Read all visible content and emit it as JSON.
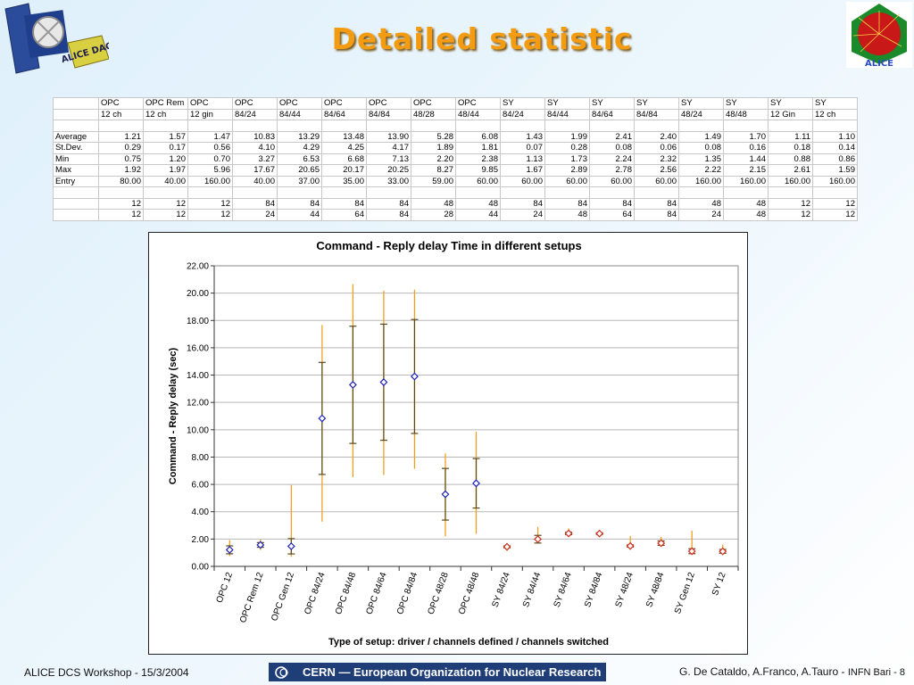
{
  "header": {
    "title": "Detailed statistic",
    "logo_left_text": "ALICE DAQ",
    "logo_right_text": "ALICE"
  },
  "table": {
    "header_row1": [
      "OPC",
      "OPC Rem",
      "OPC",
      "OPC",
      "OPC",
      "OPC",
      "OPC",
      "OPC",
      "OPC",
      "SY",
      "SY",
      "SY",
      "SY",
      "SY",
      "SY",
      "SY",
      "SY"
    ],
    "header_row2": [
      "12 ch",
      "12 ch",
      "12 gin",
      "84/24",
      "84/44",
      "84/64",
      "84/84",
      "48/28",
      "48/44",
      "84/24",
      "84/44",
      "84/64",
      "84/84",
      "48/24",
      "48/48",
      "12 Gin",
      "12 ch"
    ],
    "stat_rows": [
      {
        "label": "Average",
        "values": [
          "1.21",
          "1.57",
          "1.47",
          "10.83",
          "13.29",
          "13.48",
          "13.90",
          "5.28",
          "6.08",
          "1.43",
          "1.99",
          "2.41",
          "2.40",
          "1.49",
          "1.70",
          "1.11",
          "1.10"
        ]
      },
      {
        "label": "St.Dev.",
        "values": [
          "0.29",
          "0.17",
          "0.56",
          "4.10",
          "4.29",
          "4.25",
          "4.17",
          "1.89",
          "1.81",
          "0.07",
          "0.28",
          "0.08",
          "0.06",
          "0.08",
          "0.16",
          "0.18",
          "0.14"
        ]
      },
      {
        "label": "Min",
        "values": [
          "0.75",
          "1.20",
          "0.70",
          "3.27",
          "6.53",
          "6.68",
          "7.13",
          "2.20",
          "2.38",
          "1.13",
          "1.73",
          "2.24",
          "2.32",
          "1.35",
          "1.44",
          "0.88",
          "0.86"
        ]
      },
      {
        "label": "Max",
        "values": [
          "1.92",
          "1.97",
          "5.96",
          "17.67",
          "20.65",
          "20.17",
          "20.25",
          "8.27",
          "9.85",
          "1.67",
          "2.89",
          "2.78",
          "2.56",
          "2.22",
          "2.15",
          "2.61",
          "1.59"
        ]
      },
      {
        "label": "Entry",
        "values": [
          "80.00",
          "40.00",
          "160.00",
          "40.00",
          "37.00",
          "35.00",
          "33.00",
          "59.00",
          "60.00",
          "60.00",
          "60.00",
          "60.00",
          "60.00",
          "160.00",
          "160.00",
          "160.00",
          "160.00"
        ]
      }
    ],
    "count_rows": [
      [
        "12",
        "12",
        "12",
        "84",
        "84",
        "84",
        "84",
        "48",
        "48",
        "84",
        "84",
        "84",
        "84",
        "48",
        "48",
        "12",
        "12"
      ],
      [
        "12",
        "12",
        "12",
        "24",
        "44",
        "64",
        "84",
        "28",
        "44",
        "24",
        "48",
        "64",
        "84",
        "24",
        "48",
        "12",
        "12"
      ]
    ]
  },
  "chart_data": {
    "type": "scatter",
    "title": "Command - Reply delay Time in different setups",
    "xlabel": "Type of setup: driver / channels defined / channels switched",
    "ylabel": "Command - Reply delay (sec)",
    "ylim": [
      0,
      22
    ],
    "yticks": [
      "0.00",
      "2.00",
      "4.00",
      "6.00",
      "8.00",
      "10.00",
      "12.00",
      "14.00",
      "16.00",
      "18.00",
      "20.00",
      "22.00"
    ],
    "grid": true,
    "categories": [
      "OPC 12",
      "OPC Rem 12",
      "OPC Gen 12",
      "OPC 84/24",
      "OPC 84/48",
      "OPC 84/64",
      "OPC 84/84",
      "OPC 48/28",
      "OPC 48/48",
      "SY 84/24",
      "SY 84/44",
      "SY 84/64",
      "SY 84/84",
      "SY 48/24",
      "SY 48/84",
      "SY Gen 12",
      "SY 12"
    ],
    "average": [
      1.21,
      1.57,
      1.47,
      10.83,
      13.29,
      13.48,
      13.9,
      5.28,
      6.08,
      1.43,
      1.99,
      2.41,
      2.4,
      1.49,
      1.7,
      1.11,
      1.1
    ],
    "stdev": [
      0.29,
      0.17,
      0.56,
      4.1,
      4.29,
      4.25,
      4.17,
      1.89,
      1.81,
      0.07,
      0.28,
      0.08,
      0.06,
      0.08,
      0.16,
      0.18,
      0.14
    ],
    "min": [
      0.75,
      1.2,
      0.7,
      3.27,
      6.53,
      6.68,
      7.13,
      2.2,
      2.38,
      1.13,
      1.73,
      2.24,
      2.32,
      1.35,
      1.44,
      0.88,
      0.86
    ],
    "max": [
      1.92,
      1.97,
      5.96,
      17.67,
      20.65,
      20.17,
      20.25,
      8.27,
      9.85,
      1.67,
      2.89,
      2.78,
      2.56,
      2.22,
      2.15,
      2.61,
      1.59
    ],
    "colors": {
      "opc_marker": "#1f22b8",
      "sy_marker": "#d42a18",
      "range_line": "#f0a020",
      "stdev_line": "#5a4a1a",
      "grid": "#b8b8b8"
    }
  },
  "footer": {
    "left": "ALICE DCS Workshop - 15/3/2004",
    "center": "CERN — European Organization for Nuclear Research",
    "right_authors": "G. De Cataldo, A.Franco, A.Tauro -",
    "right_page": "INFN Bari - 8"
  }
}
